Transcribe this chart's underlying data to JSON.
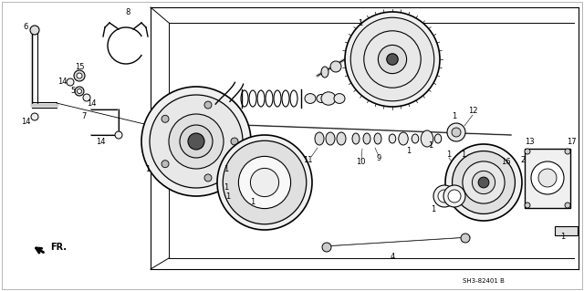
{
  "background_color": "#f5f5f0",
  "diagram_ref": "SH3-82401 B",
  "figsize": [
    6.4,
    3.19
  ],
  "dpi": 100,
  "line_color": "#2a2a2a",
  "gray": "#888888",
  "light_gray": "#cccccc"
}
